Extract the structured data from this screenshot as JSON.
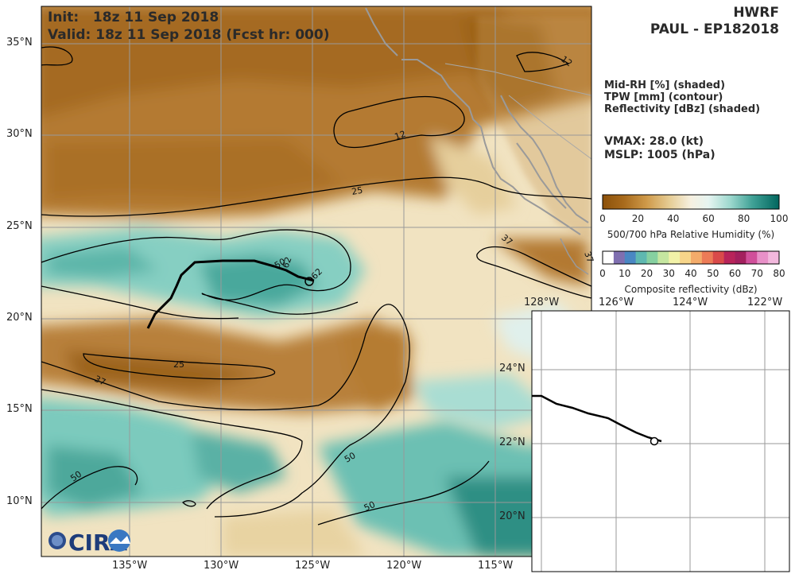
{
  "header": {
    "init_line": "Init:   18z 11 Sep 2018",
    "valid_line": "Valid: 18z 11 Sep 2018 (Fcst hr: 000)",
    "model": "HWRF",
    "storm": "PAUL - EP182018"
  },
  "legend": {
    "field1": "Mid-RH [%] (shaded)",
    "field2": "TPW [mm] (contour)",
    "field3": "Reflectivity [dBz] (shaded)"
  },
  "stats": {
    "vmax": "VMAX:  28.0 (kt)",
    "mslp": "MSLP: 1005 (hPa)"
  },
  "colorbar_rh": {
    "title": "500/700 hPa Relative Humidity (%)",
    "ticks": [
      "0",
      "20",
      "40",
      "60",
      "80",
      "100"
    ],
    "colors": [
      "#8c510a",
      "#bf812d",
      "#dfc27d",
      "#f6e8c3",
      "#f5f5f5",
      "#c7eae5",
      "#80cdc1",
      "#35978f",
      "#01665e"
    ]
  },
  "colorbar_refl": {
    "title": "Composite reflectivity (dBz)",
    "ticks": [
      "0",
      "10",
      "20",
      "30",
      "40",
      "50",
      "60",
      "70",
      "80"
    ],
    "colors": [
      "#ffffff",
      "#7f6fb0",
      "#4a87c3",
      "#5fb8b0",
      "#86d0a0",
      "#c5e6a0",
      "#f2f2a8",
      "#f7d58a",
      "#f3ab6a",
      "#ec7b57",
      "#d94a4a",
      "#b8245a",
      "#a3205e",
      "#d04f9a",
      "#e890c8",
      "#f2b8dd"
    ]
  },
  "main_map": {
    "lat_labels": [
      "35°N",
      "30°N",
      "25°N",
      "20°N",
      "15°N",
      "10°N"
    ],
    "lon_labels": [
      "135°W",
      "130°W",
      "125°W",
      "120°W",
      "115°W"
    ],
    "contour_labels": [
      "12",
      "12",
      "25",
      "25",
      "37",
      "37",
      "50",
      "50",
      "50",
      "50",
      "62",
      "62",
      "37"
    ],
    "logo_text": "CIRA"
  },
  "inset_map": {
    "lon_labels": [
      "128°W",
      "126°W",
      "124°W",
      "122°W"
    ],
    "lat_labels": [
      "24°N",
      "22°N",
      "20°N"
    ]
  }
}
